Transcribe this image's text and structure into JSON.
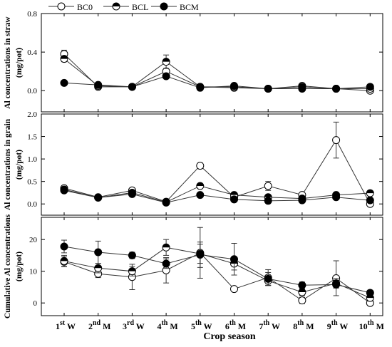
{
  "chart_data": [
    {
      "type": "line",
      "ylabel": "Al concentrations in straw",
      "yunit": "(mg/pot)",
      "ylim": [
        -0.22,
        0.8
      ],
      "yticks": [
        "0.0",
        "0.4",
        "0.8"
      ],
      "ytick_values": [
        0,
        0.4,
        0.8
      ],
      "series": [
        {
          "name": "BC0",
          "values": [
            0.38,
            0.04,
            0.04,
            0.2,
            0.04,
            0.03,
            0.02,
            0.05,
            0.02,
            0.0
          ],
          "err": [
            0.04,
            0.01,
            0.01,
            0.03,
            0.01,
            0.01,
            0.01,
            0.01,
            0.01,
            0.01
          ]
        },
        {
          "name": "BCL",
          "values": [
            0.33,
            0.05,
            0.04,
            0.3,
            0.04,
            0.04,
            0.02,
            0.04,
            0.02,
            0.02
          ],
          "err": [
            0.03,
            0.01,
            0.01,
            0.07,
            0.01,
            0.01,
            0.01,
            0.01,
            0.01,
            0.01
          ]
        },
        {
          "name": "BCM",
          "values": [
            0.08,
            0.06,
            0.04,
            0.15,
            0.03,
            0.05,
            0.02,
            0.02,
            0.02,
            0.04
          ],
          "err": [
            0.01,
            0.01,
            0.01,
            0.02,
            0.01,
            0.01,
            0.01,
            0.01,
            0.01,
            0.01
          ]
        }
      ]
    },
    {
      "type": "line",
      "ylabel": "Al concentrations in grain",
      "yunit": "(mg/pot)",
      "ylim": [
        -0.25,
        2.0
      ],
      "yticks": [
        "0.0",
        "0.5",
        "1.0",
        "1.5",
        "2.0"
      ],
      "ytick_values": [
        0,
        0.5,
        1.0,
        1.5,
        2.0
      ],
      "series": [
        {
          "name": "BC0",
          "values": [
            0.35,
            0.15,
            0.3,
            0.05,
            0.85,
            0.15,
            0.4,
            0.2,
            1.42,
            0.0
          ],
          "err": [
            0.04,
            0.02,
            0.03,
            0.01,
            0.06,
            0.03,
            0.1,
            0.02,
            0.4,
            0.01
          ]
        },
        {
          "name": "BCL",
          "values": [
            0.32,
            0.14,
            0.25,
            0.04,
            0.4,
            0.2,
            0.15,
            0.12,
            0.2,
            0.24
          ],
          "err": [
            0.03,
            0.02,
            0.03,
            0.01,
            0.04,
            0.03,
            0.02,
            0.02,
            0.03,
            0.03
          ]
        },
        {
          "name": "BCM",
          "values": [
            0.3,
            0.14,
            0.22,
            0.03,
            0.2,
            0.1,
            0.07,
            0.08,
            0.15,
            0.08
          ],
          "err": [
            0.03,
            0.02,
            0.02,
            0.01,
            0.02,
            0.02,
            0.01,
            0.01,
            0.02,
            0.01
          ]
        }
      ]
    },
    {
      "type": "line",
      "ylabel": "Cumulative Al concentrations",
      "yunit": "(mg/pot)",
      "ylim": [
        -4,
        27
      ],
      "yticks": [
        "0",
        "10",
        "20"
      ],
      "ytick_values": [
        0,
        10,
        20
      ],
      "categories": [
        "1st W",
        "2nd M",
        "3rd W",
        "4th M",
        "5th W",
        "6th M",
        "7th W",
        "8th M",
        "9th W",
        "10th M"
      ],
      "series": [
        {
          "name": "BC0",
          "values": [
            13.0,
            9.2,
            8.2,
            10.3,
            15.8,
            4.4,
            8.0,
            0.8,
            7.8,
            0.0
          ],
          "err": [
            1.5,
            1.2,
            4.0,
            4.0,
            8.0,
            0.5,
            2.5,
            1.0,
            5.5,
            0.7
          ]
        },
        {
          "name": "BCL",
          "values": [
            13.2,
            11.0,
            10.0,
            17.5,
            15.5,
            12.4,
            7.0,
            3.4,
            6.2,
            1.6
          ],
          "err": [
            1.8,
            1.5,
            1.5,
            2.5,
            3.0,
            2.0,
            1.5,
            1.0,
            1.5,
            1.0
          ]
        },
        {
          "name": "BCM",
          "values": [
            17.8,
            16.0,
            15.0,
            12.4,
            15.2,
            13.8,
            7.6,
            5.6,
            5.8,
            3.2
          ],
          "err": [
            2.0,
            3.5,
            1.0,
            1.5,
            4.0,
            5.0,
            2.0,
            1.0,
            1.0,
            0.8
          ]
        }
      ]
    }
  ],
  "legend": [
    {
      "name": "BC0",
      "marker": "open-circle"
    },
    {
      "name": "BCL",
      "marker": "half-filled-circle"
    },
    {
      "name": "BCM",
      "marker": "filled-circle"
    }
  ],
  "xlabel": "Crop season",
  "x_categories": [
    {
      "num": "1",
      "sup": "st",
      "suffix": "W"
    },
    {
      "num": "2",
      "sup": "nd",
      "suffix": "M"
    },
    {
      "num": "3",
      "sup": "rd",
      "suffix": "W"
    },
    {
      "num": "4",
      "sup": "th",
      "suffix": "M"
    },
    {
      "num": "5",
      "sup": "th",
      "suffix": "W"
    },
    {
      "num": "6",
      "sup": "th",
      "suffix": "M"
    },
    {
      "num": "7",
      "sup": "th",
      "suffix": "W"
    },
    {
      "num": "8",
      "sup": "th",
      "suffix": "M"
    },
    {
      "num": "9",
      "sup": "th",
      "suffix": "W"
    },
    {
      "num": "10",
      "sup": "th",
      "suffix": "M"
    }
  ],
  "colors": {
    "line": "#333333",
    "marker_fill": "#000000",
    "marker_open": "#ffffff"
  }
}
